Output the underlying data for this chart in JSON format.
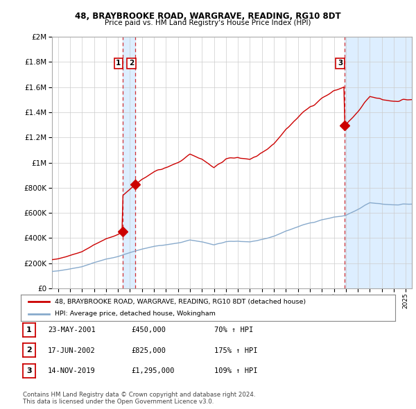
{
  "title": "48, BRAYBROOKE ROAD, WARGRAVE, READING, RG10 8DT",
  "subtitle": "Price paid vs. HM Land Registry's House Price Index (HPI)",
  "sale_dates_decimal": [
    2001.388,
    2002.458,
    2019.873
  ],
  "sale_prices": [
    450000,
    825000,
    1295000
  ],
  "sale_labels": [
    "1",
    "2",
    "3"
  ],
  "sale_pct": [
    "70% ↑ HPI",
    "175% ↑ HPI",
    "109% ↑ HPI"
  ],
  "sale_date_str": [
    "23-MAY-2001",
    "17-JUN-2002",
    "14-NOV-2019"
  ],
  "sale_price_str": [
    "£450,000",
    "£825,000",
    "£1,295,000"
  ],
  "legend_line1": "48, BRAYBROOKE ROAD, WARGRAVE, READING, RG10 8DT (detached house)",
  "legend_line2": "HPI: Average price, detached house, Wokingham",
  "footer1": "Contains HM Land Registry data © Crown copyright and database right 2024.",
  "footer2": "This data is licensed under the Open Government Licence v3.0.",
  "red_color": "#cc0000",
  "blue_color": "#88aacc",
  "shade_color": "#ddeeff",
  "ylim_max": 2000000,
  "ylim_min": 0,
  "xlim_min": 1995.5,
  "xlim_max": 2025.5,
  "bg_color": "#ffffff",
  "grid_color": "#cccccc"
}
